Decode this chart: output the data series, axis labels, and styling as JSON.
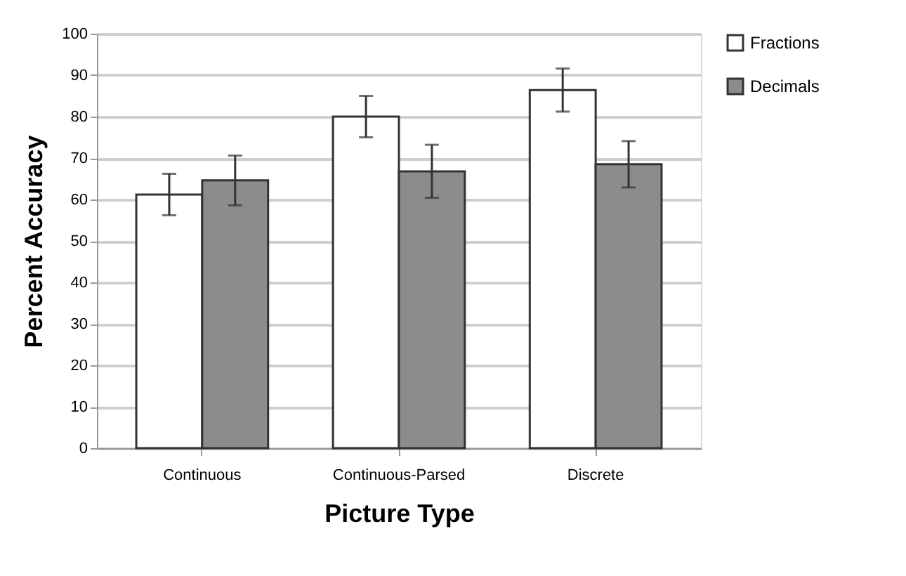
{
  "chart_data": {
    "type": "bar",
    "xlabel": "Picture Type",
    "ylabel": "Percent Accuracy",
    "categories": [
      "Continuous",
      "Continuous-Parsed",
      "Discrete"
    ],
    "series": [
      {
        "name": "Fractions",
        "color": "#ffffff",
        "values": [
          61.2,
          80.0,
          86.4
        ],
        "errors": [
          5,
          5,
          5.2
        ]
      },
      {
        "name": "Decimals",
        "color": "#8c8c8c",
        "values": [
          64.6,
          66.8,
          68.5
        ],
        "errors": [
          6,
          6.4,
          5.6
        ]
      }
    ],
    "ylim": [
      0,
      100
    ],
    "yticks": [
      0,
      10,
      20,
      30,
      40,
      50,
      60,
      70,
      80,
      90,
      100
    ],
    "grid": "y",
    "legend": "right"
  }
}
